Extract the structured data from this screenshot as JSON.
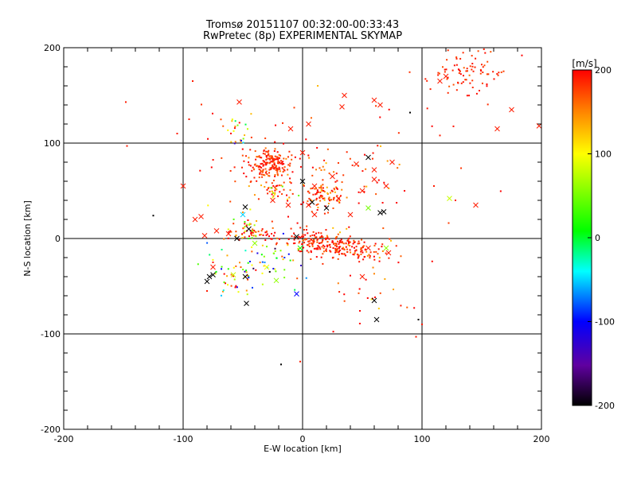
{
  "header": {
    "title_line1": "Tromsø 20151107 00:32:00-00:33:43",
    "title_line2": "RwPretec (8p) EXPERIMENTAL SKYMAP"
  },
  "chart_data": {
    "type": "scatter",
    "xlabel": "E-W location [km]",
    "ylabel": "N-S location [km]",
    "xlim": [
      -200,
      200
    ],
    "ylim": [
      -200,
      200
    ],
    "xticks": [
      -200,
      -100,
      0,
      100,
      200
    ],
    "yticks": [
      -200,
      -100,
      0,
      100,
      200
    ],
    "tick_labels_x": [
      "-200",
      "-100",
      "0",
      "100",
      "200"
    ],
    "tick_labels_y": [
      "-200",
      "-100",
      "0",
      "100",
      "200"
    ],
    "grid": true,
    "colorbar": {
      "label": "[m/s]",
      "range": [
        -200,
        200
      ],
      "ticks": [
        -200,
        -100,
        0,
        100,
        200
      ],
      "tick_labels": [
        "-200",
        "-100",
        "0",
        "100",
        "200"
      ],
      "colormap": [
        "#000000",
        "#8000c0",
        "#0000ff",
        "#00ffff",
        "#00ff00",
        "#ffff00",
        "#ff0000"
      ]
    },
    "markers": {
      "small": "dot",
      "large": "x"
    },
    "clusters": [
      {
        "cx": -28,
        "cy": 78,
        "sx": 10,
        "sy": 8,
        "n": 170,
        "v": 185,
        "vs": 15
      },
      {
        "cx": -22,
        "cy": 52,
        "sx": 8,
        "sy": 5,
        "n": 40,
        "v": 160,
        "vs": 60
      },
      {
        "cx": 18,
        "cy": 45,
        "sx": 8,
        "sy": 6,
        "n": 70,
        "v": 175,
        "vs": 40
      },
      {
        "cx": 25,
        "cy": -7,
        "sx": 22,
        "sy": 6,
        "n": 260,
        "v": 185,
        "vs": 20,
        "slope": -0.2
      },
      {
        "cx": -42,
        "cy": 8,
        "sx": 10,
        "sy": 6,
        "n": 60,
        "v": 170,
        "vs": 80
      },
      {
        "cx": -35,
        "cy": -25,
        "sx": 20,
        "sy": 14,
        "n": 60,
        "v": 30,
        "vs": 100
      },
      {
        "cx": 135,
        "cy": 175,
        "sx": 18,
        "sy": 15,
        "n": 90,
        "v": 185,
        "vs": 10
      },
      {
        "cx": 15,
        "cy": 60,
        "sx": 45,
        "sy": 40,
        "n": 140,
        "v": 180,
        "vs": 30
      },
      {
        "cx": -60,
        "cy": -40,
        "sx": 10,
        "sy": 10,
        "n": 25,
        "v": 150,
        "vs": 100
      },
      {
        "cx": -55,
        "cy": 115,
        "sx": 8,
        "sy": 10,
        "n": 20,
        "v": 80,
        "vs": 120
      },
      {
        "cx": 50,
        "cy": -55,
        "sx": 15,
        "sy": 18,
        "n": 25,
        "v": 180,
        "vs": 30
      }
    ],
    "crosses": [
      {
        "x": -53,
        "y": 143,
        "v": 190
      },
      {
        "x": -100,
        "y": 55,
        "v": 190
      },
      {
        "x": -85,
        "y": 23,
        "v": 190
      },
      {
        "x": -82,
        "y": 3,
        "v": 190
      },
      {
        "x": -72,
        "y": 8,
        "v": 190
      },
      {
        "x": -62,
        "y": 5,
        "v": 190
      },
      {
        "x": -90,
        "y": 20,
        "v": 190
      },
      {
        "x": -75,
        "y": -30,
        "v": 190
      },
      {
        "x": -78,
        "y": -40,
        "v": -200
      },
      {
        "x": -80,
        "y": -45,
        "v": -200
      },
      {
        "x": -75,
        "y": -38,
        "v": -200
      },
      {
        "x": -58,
        "y": -38,
        "v": 80
      },
      {
        "x": -48,
        "y": -40,
        "v": -200
      },
      {
        "x": -47,
        "y": -68,
        "v": -200
      },
      {
        "x": -5,
        "y": -58,
        "v": -100
      },
      {
        "x": -30,
        "y": -30,
        "v": 100
      },
      {
        "x": -22,
        "y": -44,
        "v": 60
      },
      {
        "x": -50,
        "y": 25,
        "v": -50
      },
      {
        "x": -48,
        "y": 33,
        "v": -200
      },
      {
        "x": -45,
        "y": 10,
        "v": -200
      },
      {
        "x": -55,
        "y": 0,
        "v": -200
      },
      {
        "x": -40,
        "y": -5,
        "v": 60
      },
      {
        "x": -12,
        "y": 35,
        "v": 190
      },
      {
        "x": -25,
        "y": 40,
        "v": 190
      },
      {
        "x": 5,
        "y": 35,
        "v": 190
      },
      {
        "x": 10,
        "y": 25,
        "v": 190
      },
      {
        "x": 20,
        "y": 32,
        "v": -200
      },
      {
        "x": 40,
        "y": 25,
        "v": 190
      },
      {
        "x": 55,
        "y": 32,
        "v": 50
      },
      {
        "x": 65,
        "y": 27,
        "v": -200
      },
      {
        "x": 68,
        "y": 28,
        "v": -200
      },
      {
        "x": 50,
        "y": 50,
        "v": 190
      },
      {
        "x": 70,
        "y": 55,
        "v": 190
      },
      {
        "x": 45,
        "y": 78,
        "v": 190
      },
      {
        "x": 60,
        "y": 72,
        "v": 190
      },
      {
        "x": 75,
        "y": 80,
        "v": 190
      },
      {
        "x": 25,
        "y": 65,
        "v": 190
      },
      {
        "x": 0,
        "y": 90,
        "v": 190
      },
      {
        "x": 5,
        "y": 120,
        "v": 190
      },
      {
        "x": -10,
        "y": 115,
        "v": 190
      },
      {
        "x": 0,
        "y": 60,
        "v": -200
      },
      {
        "x": 10,
        "y": 55,
        "v": 190
      },
      {
        "x": 30,
        "y": 42,
        "v": 190
      },
      {
        "x": 60,
        "y": 62,
        "v": 190
      },
      {
        "x": 55,
        "y": 85,
        "v": -200
      },
      {
        "x": 70,
        "y": -10,
        "v": 60
      },
      {
        "x": 72,
        "y": -15,
        "v": 190
      },
      {
        "x": 55,
        "y": -10,
        "v": 190
      },
      {
        "x": 60,
        "y": -65,
        "v": -200
      },
      {
        "x": 62,
        "y": -85,
        "v": -200
      },
      {
        "x": 50,
        "y": -40,
        "v": 190
      },
      {
        "x": 35,
        "y": 150,
        "v": 190
      },
      {
        "x": 60,
        "y": 145,
        "v": 190
      },
      {
        "x": 65,
        "y": 140,
        "v": 190
      },
      {
        "x": 115,
        "y": 165,
        "v": 190
      },
      {
        "x": 120,
        "y": 170,
        "v": 190
      },
      {
        "x": 145,
        "y": 35,
        "v": 190
      },
      {
        "x": 123,
        "y": 42,
        "v": 80
      },
      {
        "x": 175,
        "y": 135,
        "v": 190
      },
      {
        "x": 198,
        "y": 118,
        "v": 190
      },
      {
        "x": 163,
        "y": 115,
        "v": 190
      },
      {
        "x": 33,
        "y": 138,
        "v": 190
      },
      {
        "x": -5,
        "y": 2,
        "v": -200
      },
      {
        "x": -2,
        "y": -10,
        "v": 20
      },
      {
        "x": 8,
        "y": 38,
        "v": -200
      }
    ],
    "outliers": [
      {
        "x": -148,
        "y": 143,
        "v": 190
      },
      {
        "x": -147,
        "y": 97,
        "v": 190
      },
      {
        "x": -92,
        "y": 165,
        "v": 190
      },
      {
        "x": -125,
        "y": 24,
        "v": -200
      },
      {
        "x": -18,
        "y": -132,
        "v": -200
      },
      {
        "x": -2,
        "y": -129,
        "v": 190
      },
      {
        "x": 97,
        "y": -85,
        "v": -200
      },
      {
        "x": 100,
        "y": -90,
        "v": 190
      },
      {
        "x": 95,
        "y": -103,
        "v": 190
      },
      {
        "x": 90,
        "y": 132,
        "v": -200
      },
      {
        "x": 110,
        "y": 55,
        "v": 190
      },
      {
        "x": 115,
        "y": 108,
        "v": 190
      },
      {
        "x": 128,
        "y": 40,
        "v": 190
      },
      {
        "x": 148,
        "y": 155,
        "v": 190
      },
      {
        "x": -75,
        "y": -25,
        "v": 190
      },
      {
        "x": -80,
        "y": -55,
        "v": 190
      },
      {
        "x": -105,
        "y": 110,
        "v": 190
      },
      {
        "x": -95,
        "y": 125,
        "v": 190
      }
    ]
  }
}
